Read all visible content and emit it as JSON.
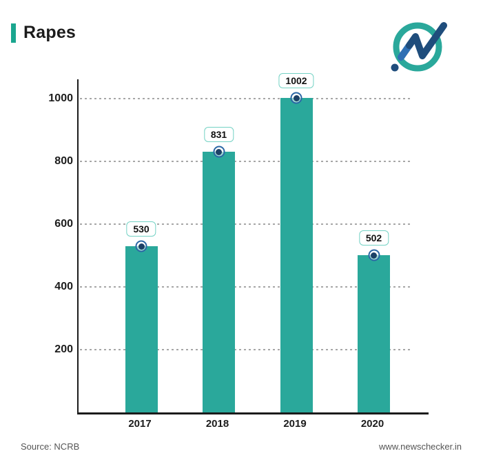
{
  "header": {
    "title": "Rapes"
  },
  "logo": {
    "name": "newschecker-logo"
  },
  "chart_data": {
    "type": "bar",
    "title": "Rapes",
    "categories": [
      "2017",
      "2018",
      "2019",
      "2020"
    ],
    "values": [
      530,
      831,
      1002,
      502
    ],
    "data_labels": [
      "530",
      "831",
      "1002",
      "502"
    ],
    "xlabel": "",
    "ylabel": "",
    "ylim": [
      0,
      1062
    ],
    "yticks": [
      200,
      400,
      600,
      800,
      1000
    ],
    "grid": "horizontal-dashed",
    "legend": "none",
    "bar_color": "#2aa89b",
    "marker_ring_color": "#2b67a5",
    "marker_dot_color": "#1c4066",
    "label_box_border_color": "#74d2c4",
    "axis_color": "#1b1b1b",
    "gridline_color": "#a6a6a6"
  },
  "footer": {
    "source": "Source: NCRB",
    "website": "www.newschecker.in"
  }
}
